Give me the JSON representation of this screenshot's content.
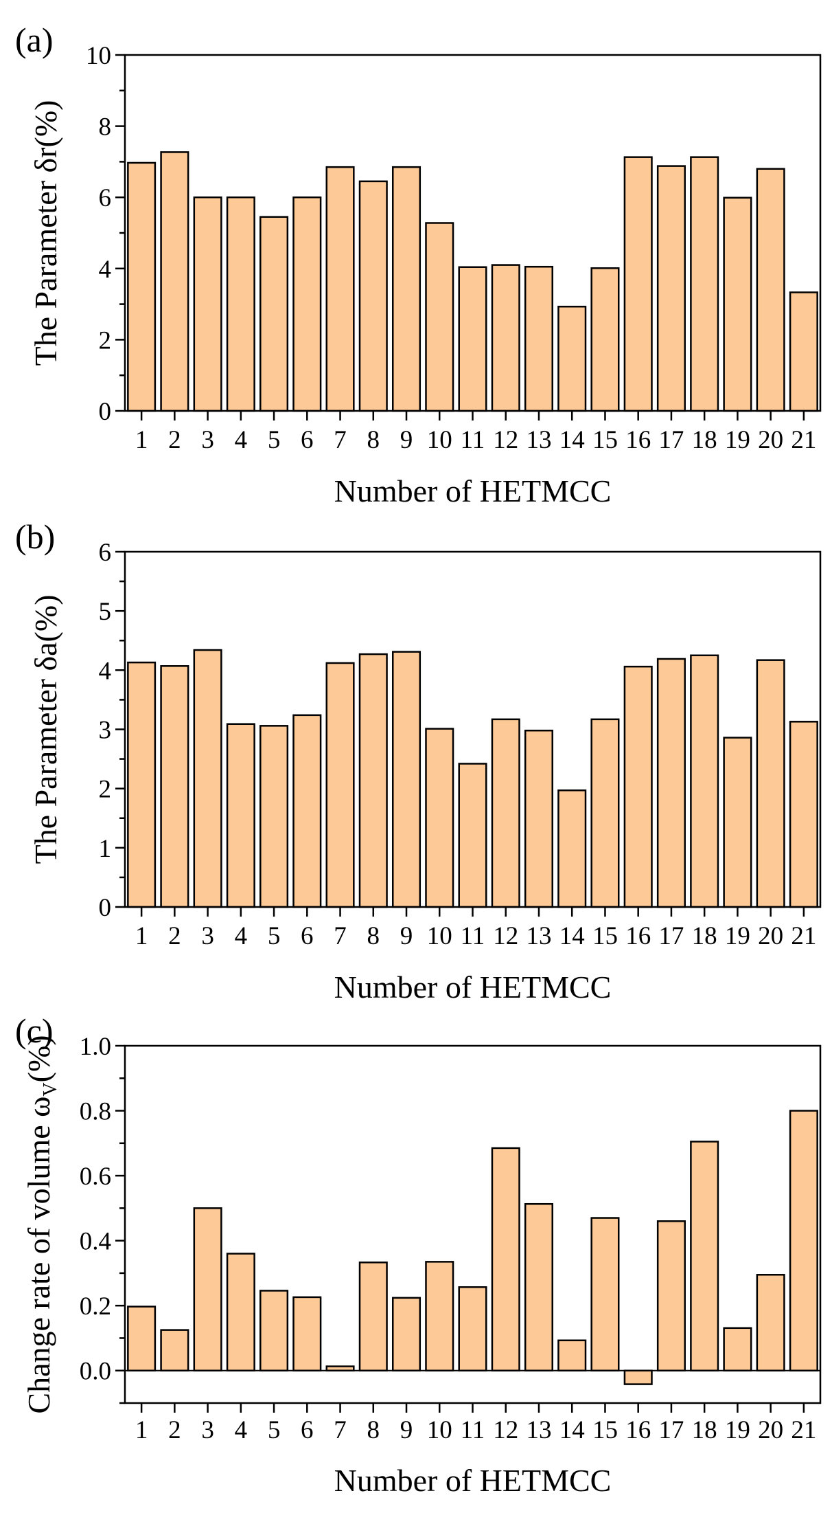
{
  "chart_data": [
    {
      "type": "bar",
      "panel_label": "(a)",
      "categories": [
        "1",
        "2",
        "3",
        "4",
        "5",
        "6",
        "7",
        "8",
        "9",
        "10",
        "11",
        "12",
        "13",
        "14",
        "15",
        "16",
        "17",
        "18",
        "19",
        "20",
        "21"
      ],
      "values": [
        6.97,
        7.27,
        6.0,
        6.0,
        5.45,
        6.0,
        6.85,
        6.45,
        6.85,
        5.28,
        4.04,
        4.1,
        4.05,
        2.93,
        4.01,
        7.13,
        6.88,
        7.13,
        5.99,
        6.8,
        3.33
      ],
      "xlabel": "Number of HETMCC",
      "ylabel": "The Parameter δr(%)",
      "ylim": [
        0,
        10
      ],
      "yticks": [
        0,
        2,
        4,
        6,
        8,
        10
      ],
      "ytick_labels": [
        "0",
        "2",
        "4",
        "6",
        "8",
        "10"
      ]
    },
    {
      "type": "bar",
      "panel_label": "(b)",
      "categories": [
        "1",
        "2",
        "3",
        "4",
        "5",
        "6",
        "7",
        "8",
        "9",
        "10",
        "11",
        "12",
        "13",
        "14",
        "15",
        "16",
        "17",
        "18",
        "19",
        "20",
        "21"
      ],
      "values": [
        4.13,
        4.07,
        4.34,
        3.09,
        3.06,
        3.24,
        4.12,
        4.27,
        4.31,
        3.01,
        2.42,
        3.17,
        2.98,
        1.97,
        3.17,
        4.06,
        4.19,
        4.25,
        2.86,
        4.17,
        3.13
      ],
      "xlabel": "Number of HETMCC",
      "ylabel": "The Parameter δa(%)",
      "ylim": [
        0,
        6
      ],
      "yticks": [
        0,
        1,
        2,
        3,
        4,
        5,
        6
      ],
      "ytick_labels": [
        "0",
        "1",
        "2",
        "3",
        "4",
        "5",
        "6"
      ]
    },
    {
      "type": "bar",
      "panel_label": "(c)",
      "categories": [
        "1",
        "2",
        "3",
        "4",
        "5",
        "6",
        "7",
        "8",
        "9",
        "10",
        "11",
        "12",
        "13",
        "14",
        "15",
        "16",
        "17",
        "18",
        "19",
        "20",
        "21"
      ],
      "values": [
        0.197,
        0.125,
        0.5,
        0.36,
        0.246,
        0.226,
        0.013,
        0.333,
        0.224,
        0.335,
        0.257,
        0.685,
        0.513,
        0.093,
        0.47,
        -0.042,
        0.46,
        0.705,
        0.131,
        0.295,
        0.8
      ],
      "xlabel": "Number of HETMCC",
      "ylabel": "Change rate of volume ω",
      "ylabel_subscript": "V",
      "ylabel_suffix": "(%)",
      "ylim": [
        -0.1,
        1.0
      ],
      "yticks": [
        0.0,
        0.2,
        0.4,
        0.6,
        0.8,
        1.0
      ],
      "ytick_labels": [
        "0.0",
        "0.2",
        "0.4",
        "0.6",
        "0.8",
        "1.0"
      ]
    }
  ]
}
